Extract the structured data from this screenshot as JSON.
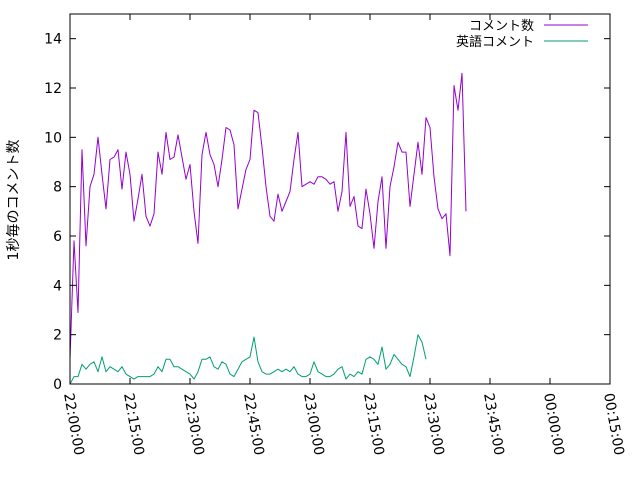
{
  "chart_data": {
    "type": "line",
    "ylabel": "1秒毎のコメント数",
    "xlabel": "",
    "title": "",
    "ylim": [
      0,
      15
    ],
    "xlim": [
      "22:00:00",
      "00:15:00"
    ],
    "yticks": [
      0,
      2,
      4,
      6,
      8,
      10,
      12,
      14
    ],
    "xticks": [
      "22:00:00",
      "22:15:00",
      "22:30:00",
      "22:45:00",
      "23:00:00",
      "23:15:00",
      "23:30:00",
      "23:45:00",
      "00:00:00",
      "00:15:00"
    ],
    "grid": false,
    "legend_position": "top-right",
    "series": [
      {
        "name": "コメント数",
        "color": "#9400d3",
        "points": [
          [
            "22:00:00",
            1.0
          ],
          [
            "22:01:00",
            5.8
          ],
          [
            "22:02:00",
            2.9
          ],
          [
            "22:03:00",
            9.5
          ],
          [
            "22:04:00",
            5.6
          ],
          [
            "22:05:00",
            8.0
          ],
          [
            "22:06:00",
            8.5
          ],
          [
            "22:07:00",
            10.0
          ],
          [
            "22:08:00",
            8.5
          ],
          [
            "22:09:00",
            7.1
          ],
          [
            "22:10:00",
            9.1
          ],
          [
            "22:11:00",
            9.2
          ],
          [
            "22:12:00",
            9.5
          ],
          [
            "22:13:00",
            7.9
          ],
          [
            "22:14:00",
            9.4
          ],
          [
            "22:15:00",
            8.5
          ],
          [
            "22:16:00",
            6.6
          ],
          [
            "22:17:00",
            7.5
          ],
          [
            "22:18:00",
            8.5
          ],
          [
            "22:19:00",
            6.8
          ],
          [
            "22:20:00",
            6.4
          ],
          [
            "22:21:00",
            6.9
          ],
          [
            "22:22:00",
            9.4
          ],
          [
            "22:23:00",
            8.5
          ],
          [
            "22:24:00",
            10.2
          ],
          [
            "22:25:00",
            9.1
          ],
          [
            "22:26:00",
            9.2
          ],
          [
            "22:27:00",
            10.1
          ],
          [
            "22:28:00",
            9.2
          ],
          [
            "22:29:00",
            8.3
          ],
          [
            "22:30:00",
            8.9
          ],
          [
            "22:31:00",
            7.0
          ],
          [
            "22:32:00",
            5.7
          ],
          [
            "22:33:00",
            9.3
          ],
          [
            "22:34:00",
            10.2
          ],
          [
            "22:35:00",
            9.3
          ],
          [
            "22:36:00",
            8.9
          ],
          [
            "22:37:00",
            8.0
          ],
          [
            "22:38:00",
            9.1
          ],
          [
            "22:39:00",
            10.4
          ],
          [
            "22:40:00",
            10.3
          ],
          [
            "22:41:00",
            9.7
          ],
          [
            "22:42:00",
            7.1
          ],
          [
            "22:43:00",
            7.9
          ],
          [
            "22:44:00",
            8.7
          ],
          [
            "22:45:00",
            9.1
          ],
          [
            "22:46:00",
            11.1
          ],
          [
            "22:47:00",
            11.0
          ],
          [
            "22:48:00",
            9.6
          ],
          [
            "22:49:00",
            8.0
          ],
          [
            "22:50:00",
            6.8
          ],
          [
            "22:51:00",
            6.6
          ],
          [
            "22:52:00",
            7.7
          ],
          [
            "22:53:00",
            7.0
          ],
          [
            "22:54:00",
            7.4
          ],
          [
            "22:55:00",
            7.8
          ],
          [
            "22:56:00",
            9.1
          ],
          [
            "22:57:00",
            10.2
          ],
          [
            "22:58:00",
            8.0
          ],
          [
            "22:59:00",
            8.1
          ],
          [
            "23:00:00",
            8.2
          ],
          [
            "23:01:00",
            8.1
          ],
          [
            "23:02:00",
            8.4
          ],
          [
            "23:03:00",
            8.4
          ],
          [
            "23:04:00",
            8.3
          ],
          [
            "23:05:00",
            8.1
          ],
          [
            "23:06:00",
            8.2
          ],
          [
            "23:07:00",
            7.0
          ],
          [
            "23:08:00",
            7.8
          ],
          [
            "23:09:00",
            10.2
          ],
          [
            "23:10:00",
            7.2
          ],
          [
            "23:11:00",
            7.6
          ],
          [
            "23:12:00",
            6.4
          ],
          [
            "23:13:00",
            6.3
          ],
          [
            "23:14:00",
            7.9
          ],
          [
            "23:15:00",
            6.9
          ],
          [
            "23:16:00",
            5.5
          ],
          [
            "23:17:00",
            7.4
          ],
          [
            "23:18:00",
            8.4
          ],
          [
            "23:19:00",
            5.5
          ],
          [
            "23:20:00",
            8.0
          ],
          [
            "23:21:00",
            8.8
          ],
          [
            "23:22:00",
            9.8
          ],
          [
            "23:23:00",
            9.4
          ],
          [
            "23:24:00",
            9.4
          ],
          [
            "23:25:00",
            7.2
          ],
          [
            "23:26:00",
            8.5
          ],
          [
            "23:27:00",
            9.8
          ],
          [
            "23:28:00",
            8.5
          ],
          [
            "23:29:00",
            10.8
          ],
          [
            "23:30:00",
            10.4
          ],
          [
            "23:31:00",
            8.4
          ],
          [
            "23:32:00",
            7.1
          ],
          [
            "23:33:00",
            6.7
          ],
          [
            "23:34:00",
            6.9
          ],
          [
            "23:35:00",
            5.2
          ],
          [
            "23:36:00",
            12.1
          ],
          [
            "23:37:00",
            11.1
          ],
          [
            "23:38:00",
            12.6
          ],
          [
            "23:39:00",
            7.0
          ]
        ]
      },
      {
        "name": "英語コメント",
        "color": "#009e73",
        "points": [
          [
            "22:00:00",
            0.0
          ],
          [
            "22:01:00",
            0.3
          ],
          [
            "22:02:00",
            0.3
          ],
          [
            "22:03:00",
            0.8
          ],
          [
            "22:04:00",
            0.6
          ],
          [
            "22:05:00",
            0.8
          ],
          [
            "22:06:00",
            0.9
          ],
          [
            "22:07:00",
            0.5
          ],
          [
            "22:08:00",
            1.1
          ],
          [
            "22:09:00",
            0.5
          ],
          [
            "22:10:00",
            0.7
          ],
          [
            "22:11:00",
            0.6
          ],
          [
            "22:12:00",
            0.5
          ],
          [
            "22:13:00",
            0.7
          ],
          [
            "22:14:00",
            0.4
          ],
          [
            "22:15:00",
            0.3
          ],
          [
            "22:16:00",
            0.2
          ],
          [
            "22:17:00",
            0.3
          ],
          [
            "22:18:00",
            0.3
          ],
          [
            "22:19:00",
            0.3
          ],
          [
            "22:20:00",
            0.3
          ],
          [
            "22:21:00",
            0.4
          ],
          [
            "22:22:00",
            0.7
          ],
          [
            "22:23:00",
            0.5
          ],
          [
            "22:24:00",
            1.0
          ],
          [
            "22:25:00",
            1.0
          ],
          [
            "22:26:00",
            0.7
          ],
          [
            "22:27:00",
            0.7
          ],
          [
            "22:28:00",
            0.6
          ],
          [
            "22:29:00",
            0.5
          ],
          [
            "22:30:00",
            0.4
          ],
          [
            "22:31:00",
            0.2
          ],
          [
            "22:32:00",
            0.5
          ],
          [
            "22:33:00",
            1.0
          ],
          [
            "22:34:00",
            1.0
          ],
          [
            "22:35:00",
            1.1
          ],
          [
            "22:36:00",
            0.7
          ],
          [
            "22:37:00",
            0.6
          ],
          [
            "22:38:00",
            0.9
          ],
          [
            "22:39:00",
            0.8
          ],
          [
            "22:40:00",
            0.4
          ],
          [
            "22:41:00",
            0.3
          ],
          [
            "22:42:00",
            0.6
          ],
          [
            "22:43:00",
            0.9
          ],
          [
            "22:44:00",
            1.0
          ],
          [
            "22:45:00",
            1.1
          ],
          [
            "22:46:00",
            1.9
          ],
          [
            "22:47:00",
            0.9
          ],
          [
            "22:48:00",
            0.5
          ],
          [
            "22:49:00",
            0.4
          ],
          [
            "22:50:00",
            0.4
          ],
          [
            "22:51:00",
            0.5
          ],
          [
            "22:52:00",
            0.6
          ],
          [
            "22:53:00",
            0.5
          ],
          [
            "22:54:00",
            0.6
          ],
          [
            "22:55:00",
            0.5
          ],
          [
            "22:56:00",
            0.7
          ],
          [
            "22:57:00",
            0.4
          ],
          [
            "22:58:00",
            0.3
          ],
          [
            "22:59:00",
            0.3
          ],
          [
            "23:00:00",
            0.4
          ],
          [
            "23:01:00",
            0.9
          ],
          [
            "23:02:00",
            0.5
          ],
          [
            "23:03:00",
            0.4
          ],
          [
            "23:04:00",
            0.3
          ],
          [
            "23:05:00",
            0.3
          ],
          [
            "23:06:00",
            0.4
          ],
          [
            "23:07:00",
            0.6
          ],
          [
            "23:08:00",
            0.7
          ],
          [
            "23:09:00",
            0.2
          ],
          [
            "23:10:00",
            0.4
          ],
          [
            "23:11:00",
            0.3
          ],
          [
            "23:12:00",
            0.5
          ],
          [
            "23:13:00",
            0.4
          ],
          [
            "23:14:00",
            1.0
          ],
          [
            "23:15:00",
            1.1
          ],
          [
            "23:16:00",
            1.0
          ],
          [
            "23:17:00",
            0.8
          ],
          [
            "23:18:00",
            1.5
          ],
          [
            "23:19:00",
            0.6
          ],
          [
            "23:20:00",
            0.8
          ],
          [
            "23:21:00",
            1.2
          ],
          [
            "23:22:00",
            1.0
          ],
          [
            "23:23:00",
            0.8
          ],
          [
            "23:24:00",
            0.7
          ],
          [
            "23:25:00",
            0.3
          ],
          [
            "23:26:00",
            1.1
          ],
          [
            "23:27:00",
            2.0
          ],
          [
            "23:28:00",
            1.7
          ],
          [
            "23:29:00",
            1.0
          ]
        ]
      }
    ]
  }
}
